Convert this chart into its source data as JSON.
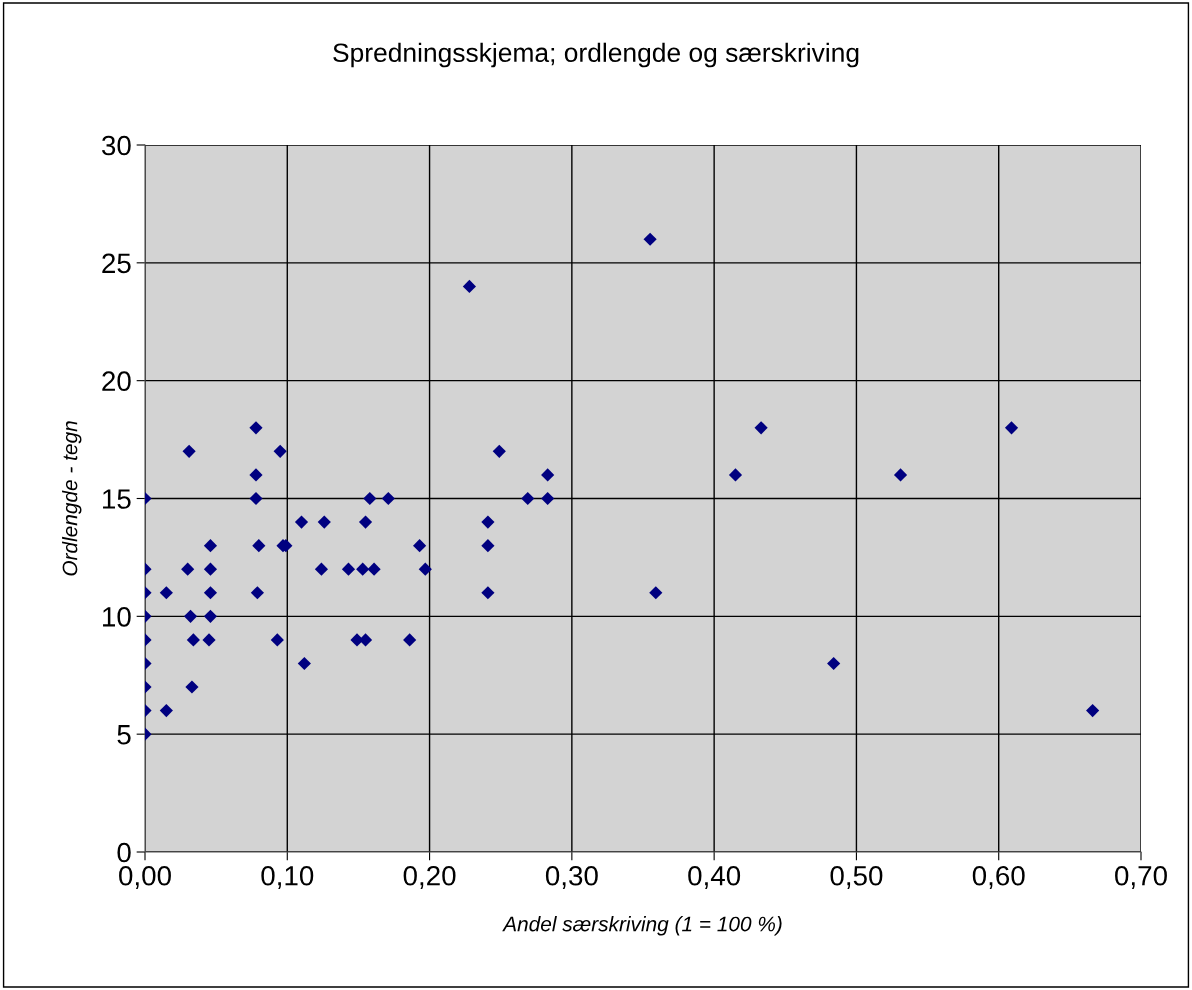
{
  "chart_data": {
    "type": "scatter",
    "title": "Spredningsskjema; ordlengde og særskriving",
    "xlabel": "Andel særskriving (1 = 100 %)",
    "ylabel": "Ordlengde - tegn",
    "x": [
      0,
      0,
      0,
      0,
      0,
      0,
      0,
      0,
      0,
      0.015,
      0.015,
      0.031,
      0.03,
      0.032,
      0.034,
      0.033,
      0.046,
      0.046,
      0.046,
      0.046,
      0.045,
      0.078,
      0.078,
      0.078,
      0.08,
      0.079,
      0.095,
      0.097,
      0.099,
      0.093,
      0.11,
      0.112,
      0.126,
      0.124,
      0.143,
      0.149,
      0.155,
      0.153,
      0.161,
      0.155,
      0.158,
      0.171,
      0.186,
      0.193,
      0.197,
      0.228,
      0.241,
      0.241,
      0.241,
      0.249,
      0.269,
      0.283,
      0.283,
      0.355,
      0.359,
      0.415,
      0.433,
      0.484,
      0.531,
      0.609,
      0.666
    ],
    "values": [
      15,
      12,
      11,
      10,
      9,
      8,
      7,
      6,
      5,
      11,
      6,
      17,
      12,
      10,
      9,
      7,
      13,
      12,
      11,
      10,
      9,
      18,
      16,
      15,
      13,
      11,
      17,
      13,
      13,
      9,
      14,
      8,
      14,
      12,
      12,
      9,
      14,
      12,
      12,
      9,
      15,
      15,
      9,
      13,
      12,
      24,
      14,
      13,
      11,
      17,
      15,
      16,
      15,
      26,
      11,
      16,
      18,
      8,
      16,
      18,
      6
    ],
    "color": "#000080",
    "marker": "diamond",
    "grid": true,
    "xlim": [
      0,
      0.7
    ],
    "xticks": [
      {
        "value": 0,
        "label": "0,00"
      },
      {
        "value": 0.1,
        "label": "0,10"
      },
      {
        "value": 0.2,
        "label": "0,20"
      },
      {
        "value": 0.3,
        "label": "0,30"
      },
      {
        "value": 0.4,
        "label": "0,40"
      },
      {
        "value": 0.5,
        "label": "0,50"
      },
      {
        "value": 0.6,
        "label": "0,60"
      },
      {
        "value": 0.7,
        "label": "0,70"
      }
    ],
    "ylim": [
      0,
      30
    ],
    "yticks": [
      0,
      5,
      10,
      15,
      20,
      25,
      30
    ]
  }
}
